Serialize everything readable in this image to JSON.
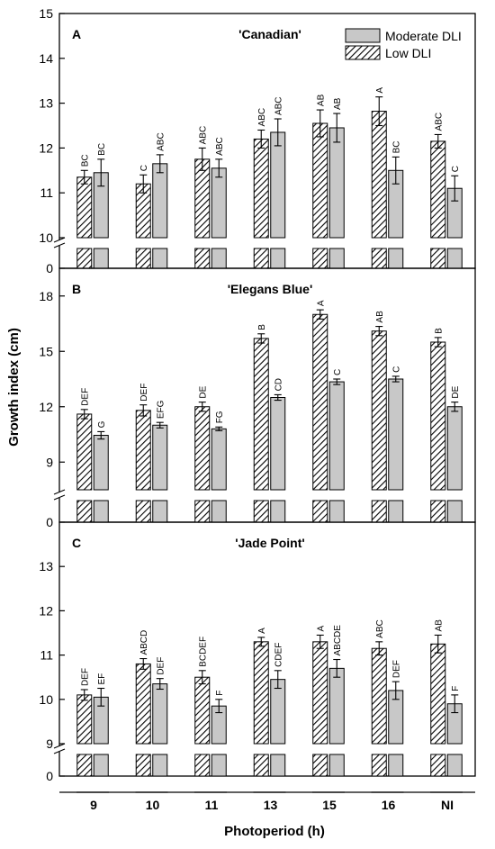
{
  "figure": {
    "ylabel": "Growth index (cm)",
    "xlabel": "Photoperiod (h)",
    "legend": {
      "moderate_label": "Moderate DLI",
      "low_label": "Low DLI"
    }
  },
  "chart_data": [
    {
      "type": "bar",
      "panel_letter": "A",
      "title": "'Canadian'",
      "categories": [
        "9",
        "10",
        "11",
        "13",
        "15",
        "16",
        "NI"
      ],
      "xlabel": "Photoperiod (h)",
      "ylabel": "Growth index (cm)",
      "ylim": [
        10,
        15
      ],
      "y_ticks": [
        10,
        11,
        12,
        13,
        14,
        15
      ],
      "broken_axis": {
        "lower_tick": 0
      },
      "legend_position": "top-right",
      "series": [
        {
          "name": "Low DLI",
          "pattern": "hatched",
          "values": [
            11.35,
            11.2,
            11.75,
            12.2,
            12.55,
            12.82,
            12.15
          ],
          "errors": [
            0.15,
            0.2,
            0.25,
            0.2,
            0.3,
            0.32,
            0.15
          ],
          "letters": [
            "BC",
            "C",
            "ABC",
            "ABC",
            "AB",
            "A",
            "ABC"
          ]
        },
        {
          "name": "Moderate DLI",
          "pattern": "solid",
          "color": "#c8c8c8",
          "values": [
            11.45,
            11.65,
            11.55,
            12.35,
            12.45,
            11.5,
            11.1
          ],
          "errors": [
            0.3,
            0.2,
            0.2,
            0.3,
            0.32,
            0.3,
            0.28
          ],
          "letters": [
            "BC",
            "ABC",
            "ABC",
            "ABC",
            "AB",
            "BC",
            "C"
          ]
        }
      ]
    },
    {
      "type": "bar",
      "panel_letter": "B",
      "title": "'Elegans Blue'",
      "categories": [
        "9",
        "10",
        "11",
        "13",
        "15",
        "16",
        "NI"
      ],
      "xlabel": "Photoperiod (h)",
      "ylabel": "Growth index (cm)",
      "ylim": [
        7.5,
        19.5
      ],
      "y_ticks": [
        9,
        12,
        15,
        18
      ],
      "broken_axis": {
        "lower_tick": 0
      },
      "series": [
        {
          "name": "Low DLI",
          "pattern": "hatched",
          "values": [
            11.6,
            11.8,
            12.0,
            15.7,
            17.0,
            16.1,
            15.5
          ],
          "errors": [
            0.25,
            0.3,
            0.25,
            0.25,
            0.25,
            0.25,
            0.25
          ],
          "letters": [
            "DEF",
            "DEF",
            "DE",
            "B",
            "A",
            "AB",
            "B"
          ]
        },
        {
          "name": "Moderate DLI",
          "pattern": "solid",
          "color": "#c8c8c8",
          "values": [
            10.45,
            11.0,
            10.8,
            12.5,
            13.35,
            13.5,
            12.0
          ],
          "errors": [
            0.2,
            0.15,
            0.1,
            0.15,
            0.15,
            0.15,
            0.25
          ],
          "letters": [
            "G",
            "EFG",
            "FG",
            "CD",
            "C",
            "C",
            "DE"
          ]
        }
      ]
    },
    {
      "type": "bar",
      "panel_letter": "C",
      "title": "'Jade Point'",
      "categories": [
        "9",
        "10",
        "11",
        "13",
        "15",
        "16",
        "NI"
      ],
      "xlabel": "Photoperiod (h)",
      "ylabel": "Growth index (cm)",
      "ylim": [
        9,
        14
      ],
      "y_ticks": [
        9,
        10,
        11,
        12,
        13
      ],
      "broken_axis": {
        "lower_tick": 0
      },
      "series": [
        {
          "name": "Low DLI",
          "pattern": "hatched",
          "values": [
            10.1,
            10.8,
            10.5,
            11.3,
            11.3,
            11.15,
            11.25
          ],
          "errors": [
            0.12,
            0.12,
            0.15,
            0.1,
            0.15,
            0.15,
            0.2
          ],
          "letters": [
            "DEF",
            "ABCD",
            "BCDEF",
            "A",
            "A",
            "ABC",
            "AB"
          ]
        },
        {
          "name": "Moderate DLI",
          "pattern": "solid",
          "color": "#c8c8c8",
          "values": [
            10.05,
            10.35,
            9.85,
            10.45,
            10.7,
            10.2,
            9.9
          ],
          "errors": [
            0.2,
            0.12,
            0.15,
            0.2,
            0.2,
            0.2,
            0.2
          ],
          "letters": [
            "EF",
            "DEF",
            "F",
            "CDEF",
            "ABCDE",
            "DEF",
            "F"
          ]
        }
      ]
    }
  ]
}
